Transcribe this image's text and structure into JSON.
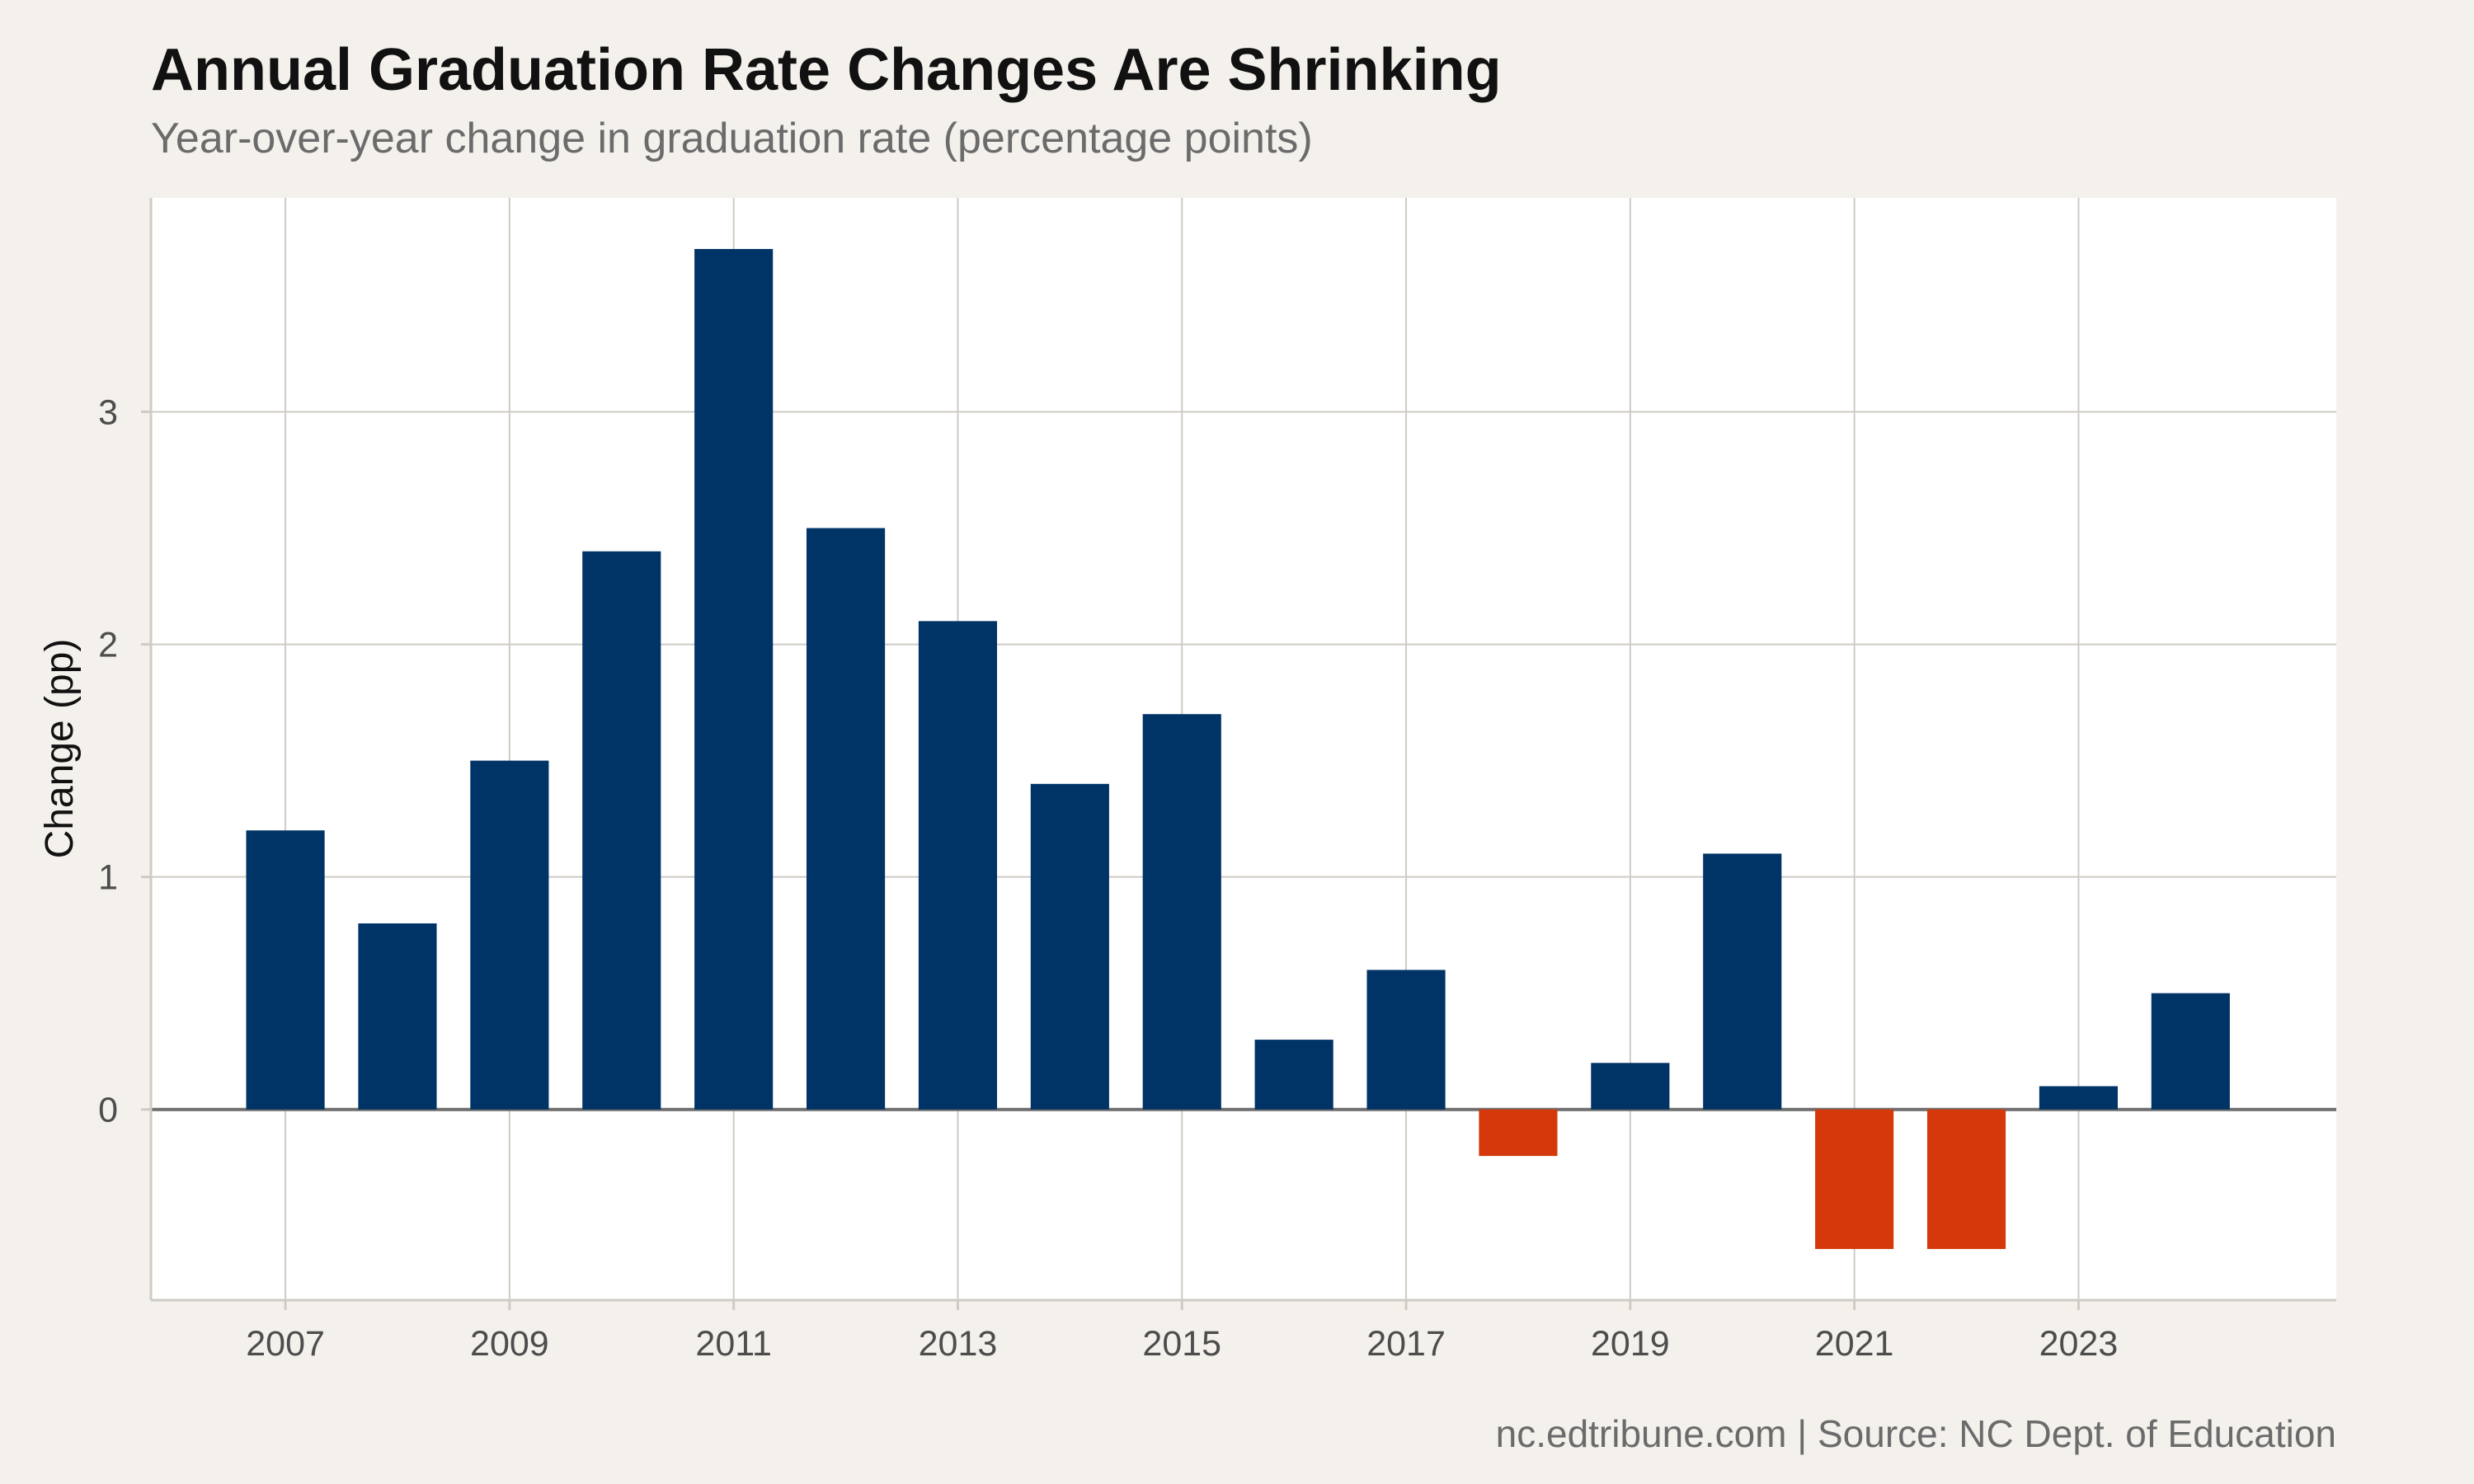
{
  "chart_data": {
    "type": "bar",
    "title": "Annual Graduation Rate Changes Are Shrinking",
    "subtitle": "Year-over-year change in graduation rate (percentage points)",
    "caption": "nc.edtribune.com | Source: NC Dept. of Education",
    "xlabel": "",
    "ylabel": "Change (pp)",
    "categories": [
      2007,
      2008,
      2009,
      2010,
      2011,
      2012,
      2013,
      2014,
      2015,
      2016,
      2017,
      2018,
      2019,
      2020,
      2021,
      2022,
      2023,
      2024
    ],
    "values": [
      1.2,
      0.8,
      1.5,
      2.4,
      3.7,
      2.5,
      2.1,
      1.4,
      1.7,
      0.3,
      0.6,
      -0.2,
      0.2,
      1.1,
      -0.6,
      -0.6,
      0.1,
      0.5
    ],
    "x_ticks": [
      "2007",
      "2009",
      "2011",
      "2013",
      "2015",
      "2017",
      "2019",
      "2021",
      "2023"
    ],
    "y_ticks": [
      0,
      1,
      2,
      3
    ],
    "ylim": [
      -0.82,
      3.92
    ],
    "xlim": [
      2005.8,
      2025.3
    ],
    "grid": true,
    "colors": {
      "positive": "#003366",
      "negative": "#d5390b",
      "background": "#f4f1ec",
      "panel": "#ffffff",
      "grid": "#cfcbc4",
      "zero_line": "#6e6e6e"
    }
  }
}
